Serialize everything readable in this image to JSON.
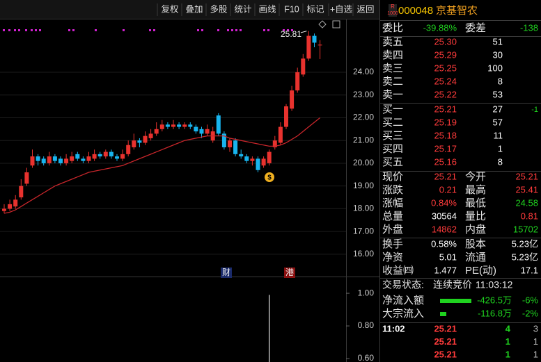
{
  "toolbar": [
    "复权",
    "叠加",
    "多股",
    "统计",
    "画线",
    "F10",
    "标记",
    "+自选",
    "返回"
  ],
  "chart_data": [
    {
      "type": "candlestick",
      "open": [
        17.9,
        18.0,
        18.1,
        18.5,
        19.1,
        19.9,
        20.3,
        20.2,
        20.0,
        20.3,
        20.2,
        20.0,
        20.1,
        20.4,
        20.2,
        20.1,
        20.2,
        20.4,
        20.3,
        20.5,
        20.3,
        20.2,
        20.4,
        20.7,
        21.0,
        20.9,
        21.1,
        21.3,
        21.5,
        21.7,
        21.6,
        21.7,
        21.6,
        21.7,
        21.6,
        21.5,
        21.3,
        21.0,
        22.1,
        21.3,
        20.7,
        21.0,
        20.4,
        20.3,
        20.1,
        20.2,
        19.9,
        20.0,
        20.7,
        20.9,
        21.6,
        22.4,
        23.2,
        23.9,
        24.6,
        25.6,
        25.21
      ],
      "high": [
        18.2,
        18.4,
        18.6,
        19.3,
        19.8,
        20.6,
        20.4,
        20.3,
        20.5,
        20.4,
        20.3,
        20.4,
        20.5,
        20.5,
        20.3,
        20.5,
        20.6,
        20.5,
        20.6,
        20.6,
        20.4,
        20.6,
        21.0,
        21.3,
        21.1,
        21.4,
        21.5,
        21.8,
        21.9,
        21.8,
        21.9,
        21.8,
        21.8,
        21.8,
        21.7,
        21.6,
        21.7,
        21.6,
        22.2,
        21.4,
        21.1,
        21.1,
        20.6,
        20.4,
        20.3,
        20.3,
        20.3,
        20.6,
        21.2,
        21.8,
        22.6,
        23.4,
        24.2,
        24.8,
        25.81,
        25.7,
        25.41
      ],
      "low": [
        17.8,
        17.9,
        18.0,
        18.4,
        19.0,
        19.8,
        19.9,
        19.9,
        19.9,
        20.0,
        19.9,
        19.9,
        20.0,
        20.1,
        20.0,
        20.0,
        20.1,
        20.2,
        20.2,
        20.2,
        20.1,
        20.1,
        20.3,
        20.6,
        20.7,
        20.8,
        21.0,
        21.2,
        21.4,
        21.5,
        21.5,
        21.5,
        21.5,
        21.5,
        21.3,
        21.1,
        21.2,
        20.9,
        21.2,
        20.6,
        20.5,
        20.3,
        20.2,
        20.0,
        19.9,
        19.6,
        19.8,
        19.9,
        20.6,
        20.8,
        21.5,
        22.3,
        23.1,
        23.8,
        24.5,
        25.1,
        24.58
      ],
      "close": [
        18.0,
        18.2,
        18.4,
        19.0,
        19.6,
        20.3,
        20.1,
        20.0,
        20.3,
        20.1,
        20.0,
        20.2,
        20.3,
        20.2,
        20.1,
        20.3,
        20.4,
        20.3,
        20.5,
        20.3,
        20.2,
        20.4,
        20.8,
        21.0,
        20.9,
        21.2,
        21.3,
        21.5,
        21.7,
        21.6,
        21.7,
        21.6,
        21.7,
        21.6,
        21.4,
        21.3,
        21.5,
        21.4,
        21.3,
        20.7,
        21.0,
        20.4,
        20.3,
        20.1,
        20.2,
        19.7,
        20.2,
        20.5,
        21.0,
        21.6,
        22.5,
        23.2,
        24.0,
        24.6,
        25.6,
        25.3,
        25.21
      ],
      "ma": [
        17.8,
        17.85,
        17.95,
        18.1,
        18.25,
        18.4,
        18.55,
        18.7,
        18.85,
        19.0,
        19.1,
        19.2,
        19.3,
        19.4,
        19.5,
        19.6,
        19.65,
        19.7,
        19.75,
        19.8,
        19.85,
        19.9,
        20.0,
        20.1,
        20.2,
        20.3,
        20.4,
        20.5,
        20.6,
        20.7,
        20.8,
        20.9,
        21.0,
        21.05,
        21.1,
        21.15,
        21.2,
        21.2,
        21.2,
        21.2,
        21.1,
        21.05,
        21.0,
        20.95,
        20.9,
        20.85,
        20.8,
        20.75,
        20.75,
        20.8,
        20.9,
        21.05,
        21.2,
        21.4,
        21.6,
        21.8,
        22.0
      ],
      "up_color": "#e8322e",
      "down_color": "#18b4ee",
      "ma_color": "#c9262b",
      "ylim": [
        15.02,
        26.32
      ],
      "yticks": [
        {
          "value": 24,
          "label": "24.00"
        },
        {
          "value": 23,
          "label": "23.00"
        },
        {
          "value": 22,
          "label": "22.00"
        },
        {
          "value": 21,
          "label": "21.00"
        },
        {
          "value": 20,
          "label": "20.00"
        },
        {
          "value": 19,
          "label": "19.00"
        },
        {
          "value": 18,
          "label": "18.00"
        },
        {
          "value": 17,
          "label": "17.00"
        },
        {
          "value": 16,
          "label": "16.00"
        }
      ],
      "grid": true,
      "annotation": "25.81",
      "icon": "$",
      "markers": [
        "财",
        "港"
      ]
    },
    {
      "type": "bar",
      "values": [
        null,
        null,
        null,
        null,
        null,
        null,
        null,
        null,
        null,
        null,
        null,
        null,
        null,
        null,
        null,
        null,
        null,
        null,
        null,
        null,
        null,
        null,
        null,
        null,
        null,
        null,
        null,
        null,
        null,
        null,
        null,
        null,
        null,
        null,
        null,
        null,
        null,
        null,
        null,
        null,
        null,
        null,
        null,
        null,
        null,
        null,
        null,
        0.99,
        null,
        null,
        null,
        null,
        null,
        null,
        null,
        null,
        null
      ],
      "color": "#e6e6e6",
      "ylim": [
        0.579,
        1.094
      ],
      "yticks": [
        {
          "value": 1.0,
          "label": "1.00"
        },
        {
          "value": 0.8,
          "label": "0.80"
        },
        {
          "value": 0.6,
          "label": "0.60"
        }
      ]
    }
  ],
  "quote": {
    "badge_top": "R",
    "badge_bottom": "1000",
    "code": "000048",
    "name": "京基智农",
    "summary": {
      "label": "委比",
      "value": "-39.88%",
      "label2": "委差",
      "value2": "-138"
    },
    "asks": [
      {
        "label": "卖五",
        "price": "25.30",
        "volume": "51"
      },
      {
        "label": "卖四",
        "price": "25.29",
        "volume": "30"
      },
      {
        "label": "卖三",
        "price": "25.25",
        "volume": "100"
      },
      {
        "label": "卖二",
        "price": "25.24",
        "volume": "8"
      },
      {
        "label": "卖一",
        "price": "25.22",
        "volume": "53"
      }
    ],
    "bids": [
      {
        "label": "买一",
        "price": "25.21",
        "volume": "27",
        "change": "-1"
      },
      {
        "label": "买二",
        "price": "25.19",
        "volume": "57"
      },
      {
        "label": "买三",
        "price": "25.18",
        "volume": "11"
      },
      {
        "label": "买四",
        "price": "25.17",
        "volume": "1"
      },
      {
        "label": "买五",
        "price": "25.16",
        "volume": "8"
      }
    ],
    "stats": [
      {
        "label": "现价",
        "value": "25.21",
        "color": "#ff3b3b",
        "label2": "今开",
        "value2": "25.21",
        "color2": "#ff3b3b"
      },
      {
        "label": "涨跌",
        "value": "0.21",
        "color": "#ff3b3b",
        "label2": "最高",
        "value2": "25.41",
        "color2": "#ff3b3b"
      },
      {
        "label": "涨幅",
        "value": "0.84%",
        "color": "#ff3b3b",
        "label2": "最低",
        "value2": "24.58",
        "color2": "#1fd21f"
      },
      {
        "label": "总量",
        "value": "30564",
        "color": "#ffffff",
        "label2": "量比",
        "value2": "0.81",
        "color2": "#ff3b3b"
      },
      {
        "label": "外盘",
        "value": "14862",
        "color": "#ff3b3b",
        "label2": "内盘",
        "value2": "15702",
        "color2": "#1fd21f"
      }
    ],
    "fundamentals": [
      {
        "label": "换手",
        "value": "0.58%",
        "label2": "股本",
        "value2": "5.23亿"
      },
      {
        "label": "净资",
        "value": "5.01",
        "label2": "流通",
        "value2": "5.23亿"
      },
      {
        "label": "收益㈣",
        "value": "1.477",
        "label2": "PE(动)",
        "value2": "17.1"
      }
    ],
    "status_label": "交易状态:",
    "status": "连续竞价",
    "status_time": "11:03:12",
    "flows": [
      {
        "label": "净流入额",
        "amount": "-426.5万",
        "pct": "-6%"
      },
      {
        "label": "大宗流入",
        "amount": "-116.8万",
        "pct": "-2%"
      }
    ],
    "trades": [
      {
        "time": "11:02",
        "price": "25.21",
        "volume": "4",
        "count": "3"
      },
      {
        "price": "25.21",
        "volume": "1",
        "count": "1"
      },
      {
        "price": "25.21",
        "volume": "1",
        "count": "1"
      }
    ]
  }
}
